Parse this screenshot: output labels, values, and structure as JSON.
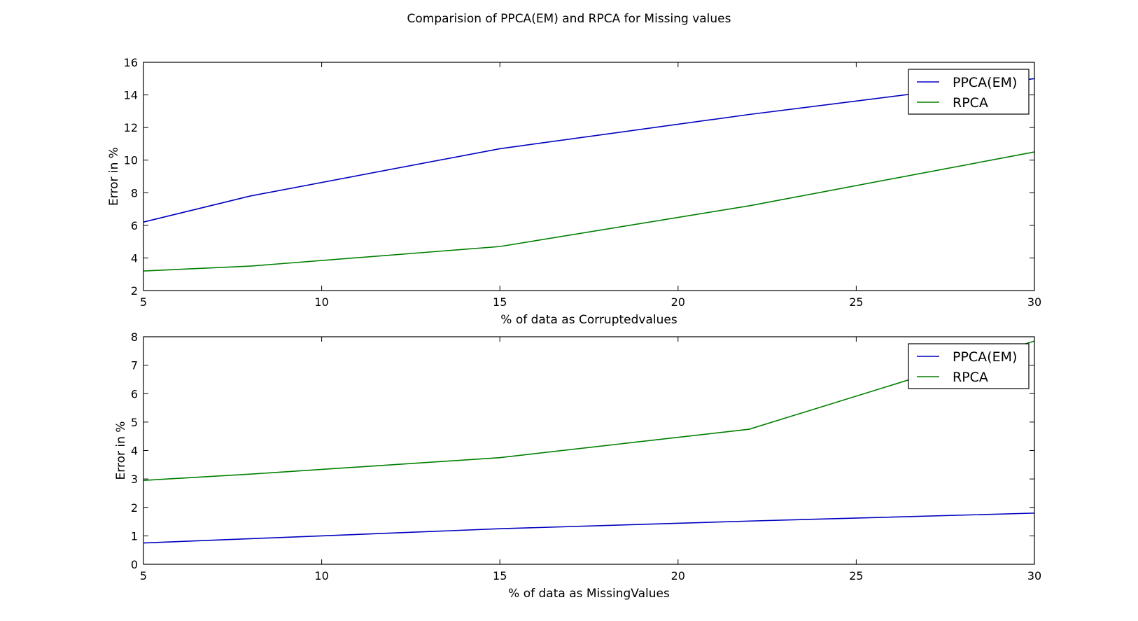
{
  "figure": {
    "title": "Comparision of PPCA(EM) and RPCA for Missing values"
  },
  "chart_data": [
    {
      "type": "line",
      "title": "",
      "xlabel": "% of data as Corruptedvalues",
      "ylabel": "Error in %",
      "xlim": [
        5,
        30
      ],
      "ylim": [
        2,
        16
      ],
      "xticks": [
        5,
        10,
        15,
        20,
        25,
        30
      ],
      "yticks": [
        2,
        4,
        6,
        8,
        10,
        12,
        14,
        16
      ],
      "grid": false,
      "legend_position": "top-right",
      "series": [
        {
          "name": "PPCA(EM)",
          "color": "#0000bf",
          "points": [
            [
              5,
              6.2
            ],
            [
              8,
              7.8
            ],
            [
              15,
              10.7
            ],
            [
              22,
              12.8
            ],
            [
              30,
              15.0
            ]
          ]
        },
        {
          "name": "RPCA",
          "color": "#007f00",
          "points": [
            [
              5,
              3.2
            ],
            [
              8,
              3.5
            ],
            [
              15,
              4.7
            ],
            [
              22,
              7.2
            ],
            [
              30,
              10.5
            ]
          ]
        }
      ]
    },
    {
      "type": "line",
      "title": "",
      "xlabel": "% of data as MissingValues",
      "ylabel": "Error in %",
      "xlim": [
        5,
        30
      ],
      "ylim": [
        0,
        8
      ],
      "xticks": [
        5,
        10,
        15,
        20,
        25,
        30
      ],
      "yticks": [
        0,
        1,
        2,
        3,
        4,
        5,
        6,
        7,
        8
      ],
      "grid": false,
      "legend_position": "top-right",
      "series": [
        {
          "name": "PPCA(EM)",
          "color": "#0000bf",
          "points": [
            [
              5,
              0.75
            ],
            [
              8,
              0.9
            ],
            [
              15,
              1.25
            ],
            [
              22,
              1.52
            ],
            [
              30,
              1.8
            ]
          ]
        },
        {
          "name": "RPCA",
          "color": "#007f00",
          "points": [
            [
              5,
              2.95
            ],
            [
              8,
              3.17
            ],
            [
              15,
              3.75
            ],
            [
              22,
              4.75
            ],
            [
              30,
              7.85
            ]
          ]
        }
      ]
    }
  ]
}
